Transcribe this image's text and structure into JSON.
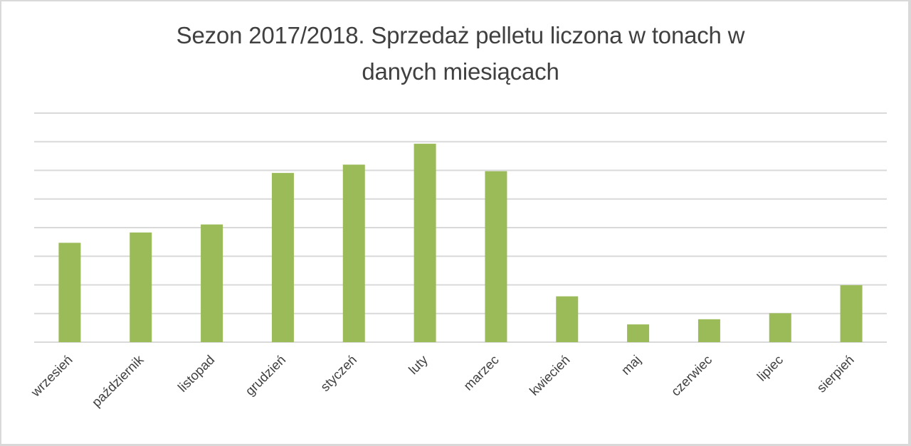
{
  "chart_data": {
    "type": "bar",
    "title": "Sezon 2017/2018. Sprzedaż pelletu liczona w tonach w danych miesiącach",
    "title_lines": [
      "Sezon 2017/2018. Sprzedaż pelletu liczona w tonach w",
      "danych miesiącach"
    ],
    "xlabel": "",
    "ylabel": "",
    "categories": [
      "wrzesień",
      "październik",
      "listopad",
      "grudzień",
      "styczeń",
      "luty",
      "marzec",
      "kwiecień",
      "maj",
      "czerwiec",
      "lipiec",
      "sierpień"
    ],
    "values": [
      3.47,
      3.83,
      4.11,
      5.91,
      6.2,
      6.93,
      5.97,
      1.6,
      0.62,
      0.8,
      1.01,
      1.99
    ],
    "value_units_note": "y-axis unlabeled; values expressed in gridline units (8 equal divisions)",
    "ylim": [
      0,
      8
    ],
    "gridline_count": 9,
    "grid": true,
    "y_tick_labels_visible": false,
    "legend": null,
    "label_rotation_deg": -45,
    "colors": {
      "bar": "#9bbb59",
      "gridline": "#d9d9d9",
      "text": "#404040",
      "border": "#d9d9d9",
      "background": "#ffffff"
    }
  }
}
